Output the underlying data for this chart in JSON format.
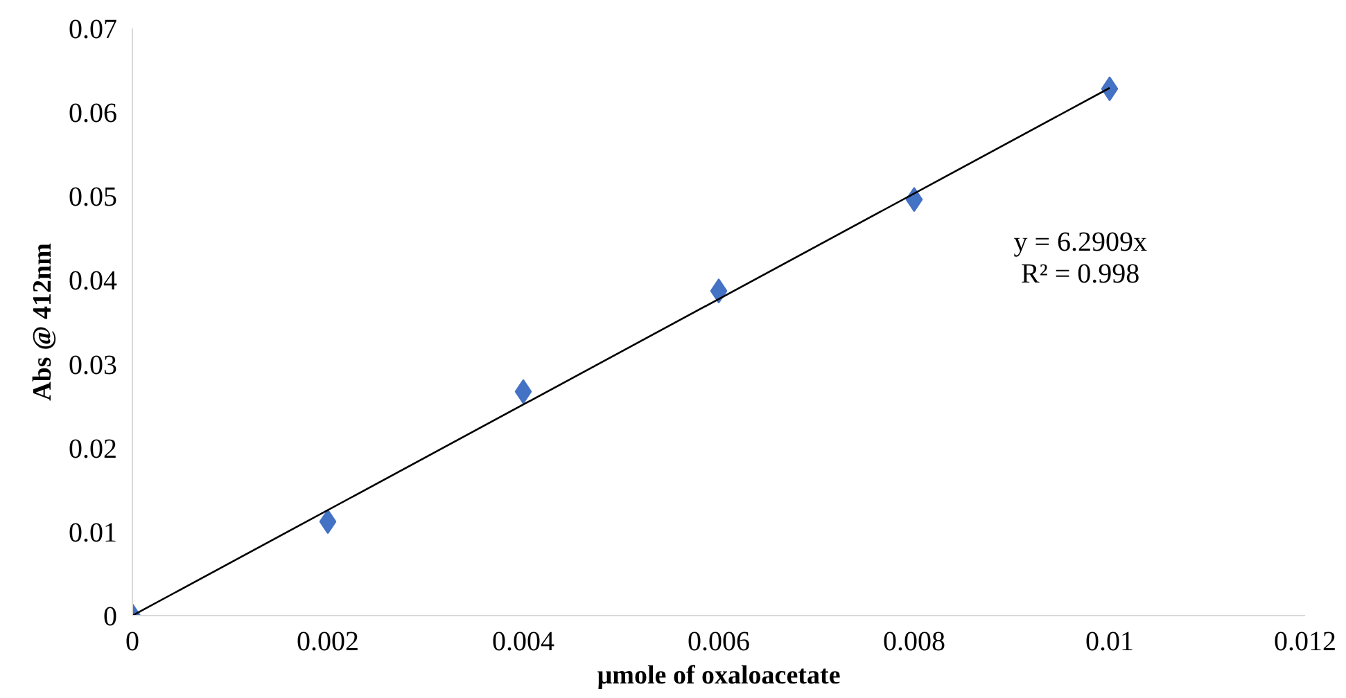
{
  "chart_data": {
    "type": "scatter",
    "xlabel": "µmole of oxaloacetate",
    "ylabel": "Abs @ 412nm",
    "xlim": [
      0,
      0.012
    ],
    "xticks": [
      0,
      0.002,
      0.004,
      0.006,
      0.008,
      0.01,
      0.012
    ],
    "ylim": [
      0,
      0.07
    ],
    "yticks": [
      0,
      0.01,
      0.02,
      0.03,
      0.04,
      0.05,
      0.06,
      0.07
    ],
    "grid": false,
    "marker": "diamond",
    "series": [
      {
        "color": "#4472c4",
        "x": [
          0,
          0.002,
          0.004,
          0.006,
          0.008,
          0.01
        ],
        "values": [
          0,
          0.0112,
          0.0267,
          0.0387,
          0.0496,
          0.0628
        ]
      },
      {
        "type": "line",
        "color": "#000000",
        "marker": "none",
        "line_style": "solid",
        "x": [
          0,
          0.01
        ],
        "values": [
          0,
          0.0629
        ]
      }
    ],
    "annotations": [
      "y = 6.2909x",
      "R² = 0.998"
    ]
  }
}
